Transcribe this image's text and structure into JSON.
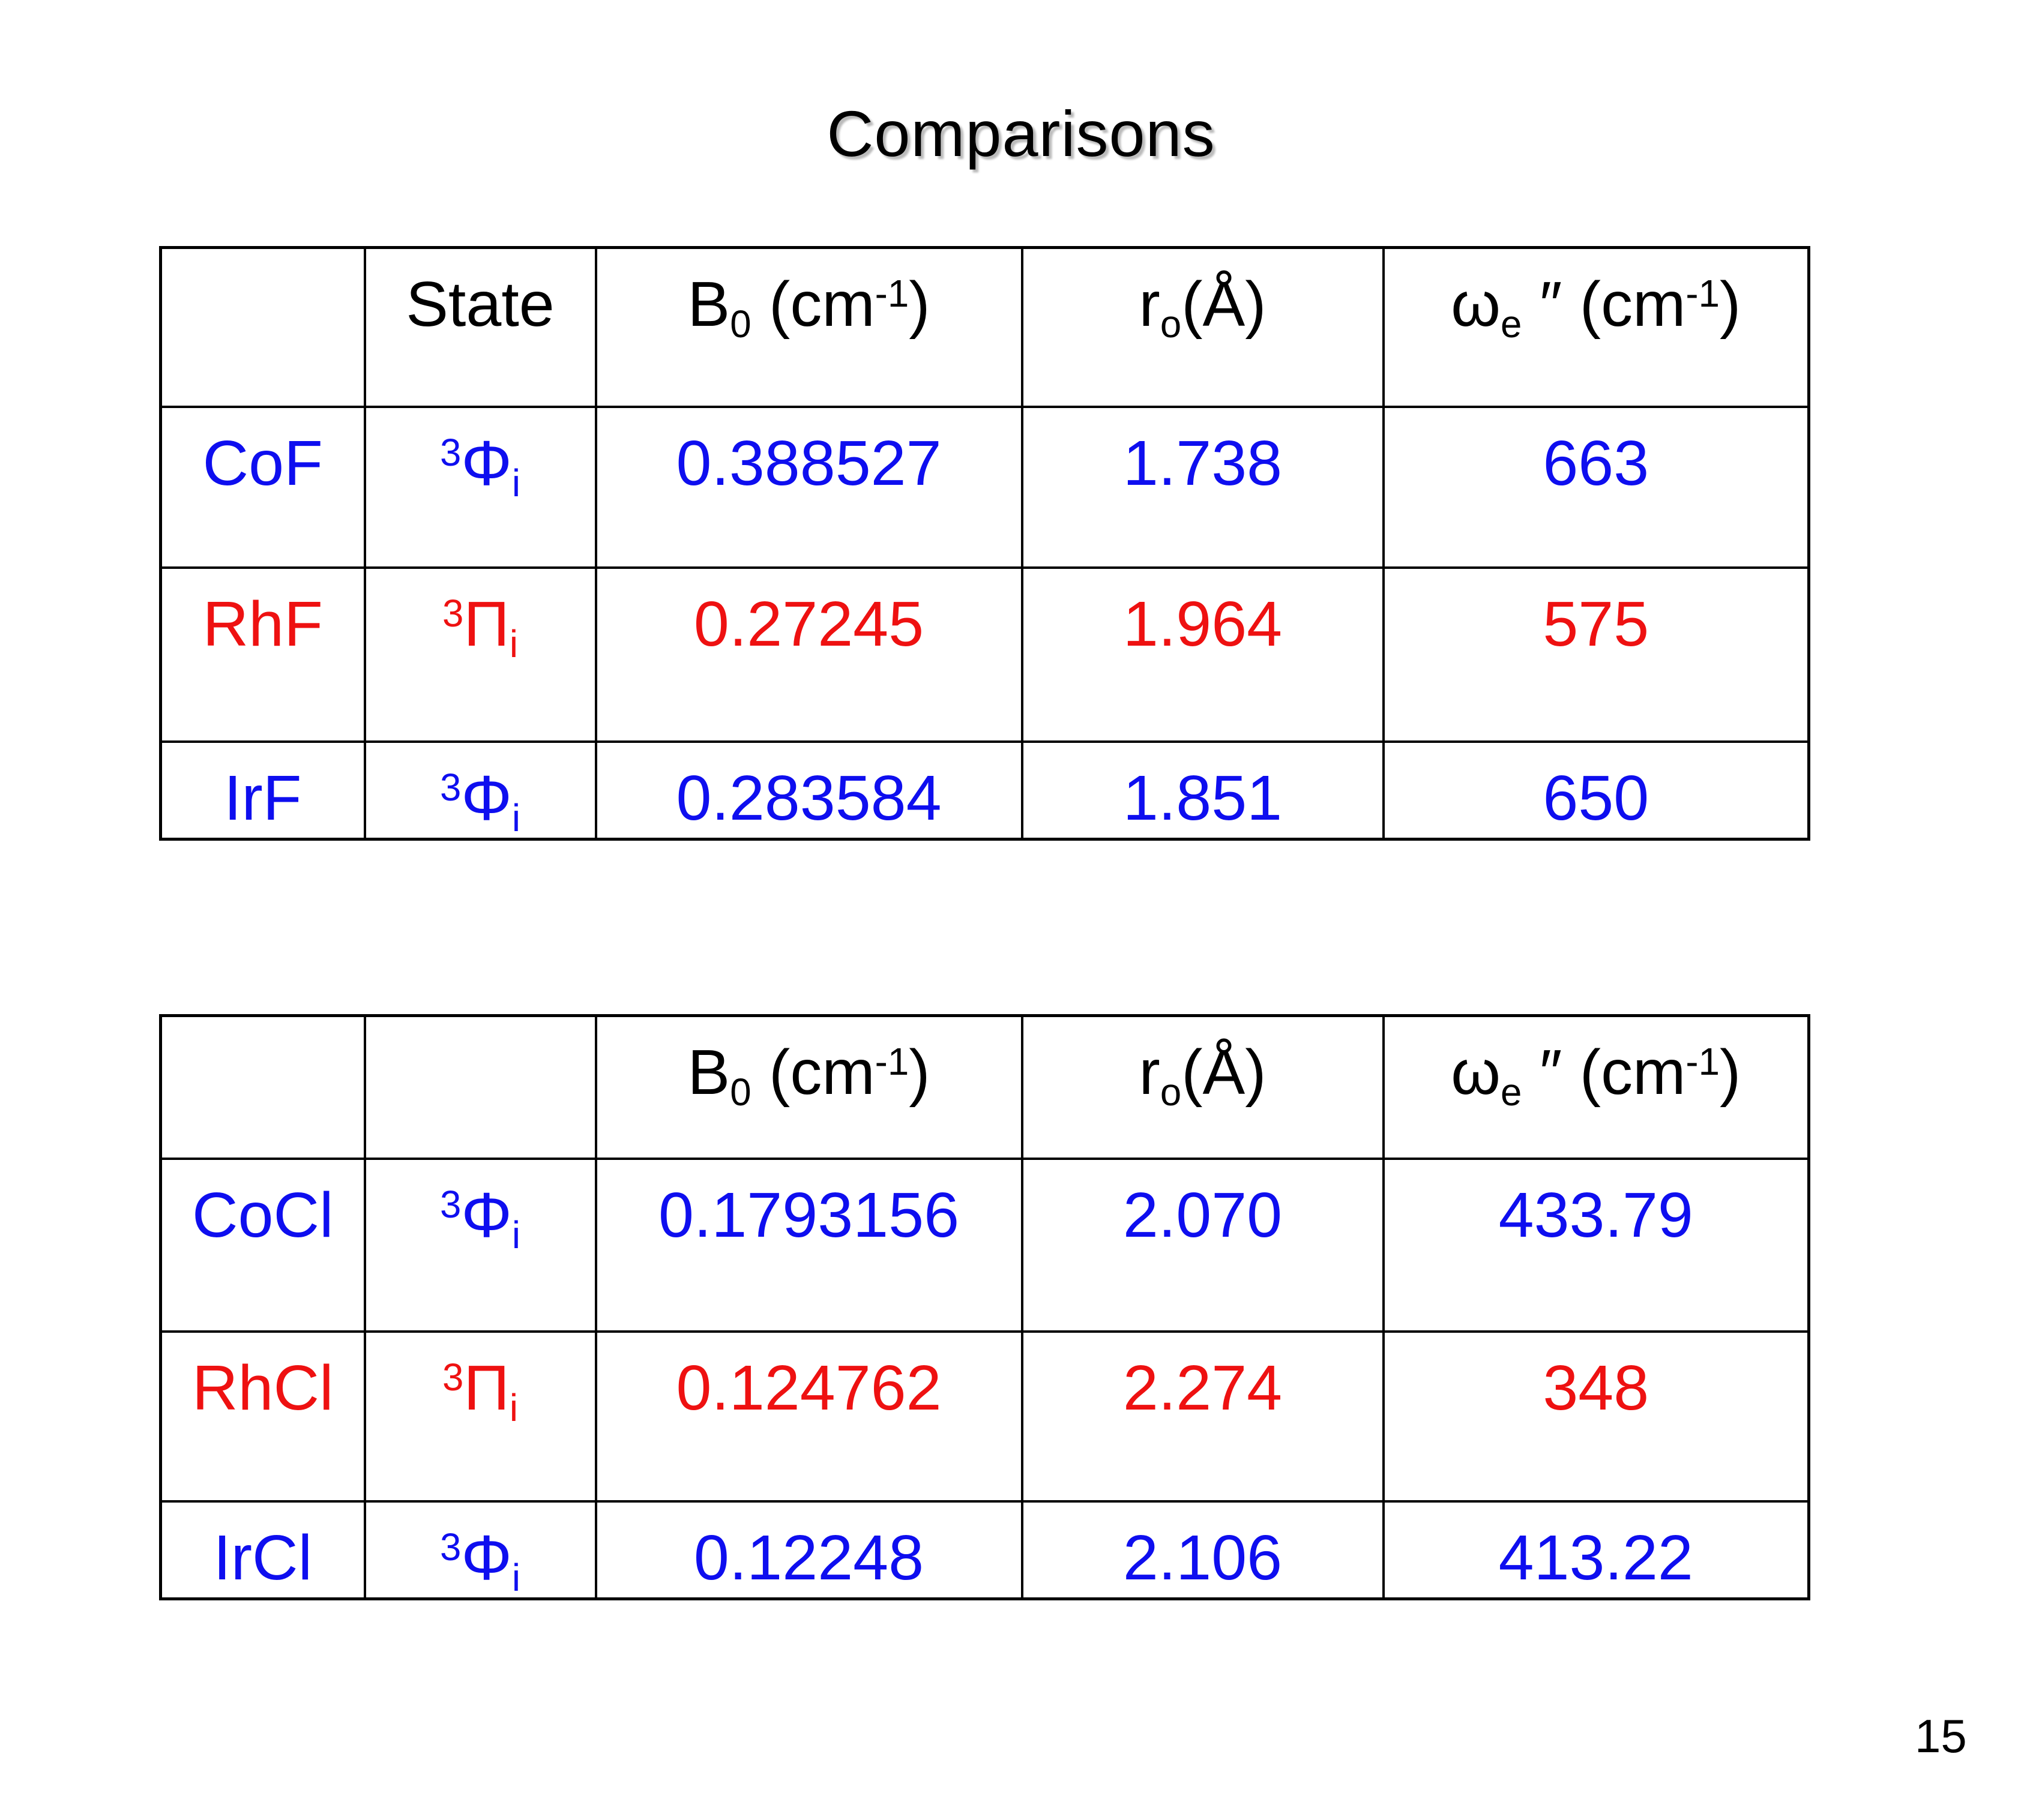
{
  "title": "Comparisons",
  "page_number": "15",
  "colors": {
    "blue": "#0e0eef",
    "red": "#ee1111",
    "black": "#000000"
  },
  "tables": [
    {
      "id": "fluorides",
      "header": [
        [],
        [
          {
            "t": "State"
          }
        ],
        [
          {
            "t": "B"
          },
          {
            "t": "0",
            "s": "sub"
          },
          {
            "t": " (cm"
          },
          {
            "t": "-1",
            "s": "sup"
          },
          {
            "t": ")"
          }
        ],
        [
          {
            "t": "r"
          },
          {
            "t": "o",
            "s": "sub"
          },
          {
            "t": "(Å)"
          }
        ],
        [
          {
            "t": "ω"
          },
          {
            "t": "e",
            "s": "sub"
          },
          {
            "t": " ″ (cm"
          },
          {
            "t": "-1",
            "s": "sup"
          },
          {
            "t": ")"
          }
        ]
      ],
      "rows": [
        {
          "color": "blue",
          "cells": [
            [
              {
                "t": "CoF"
              }
            ],
            [
              {
                "t": "3",
                "s": "sup"
              },
              {
                "t": "Φ"
              },
              {
                "t": "i",
                "s": "sub"
              }
            ],
            [
              {
                "t": "0.388527"
              }
            ],
            [
              {
                "t": "1.738"
              }
            ],
            [
              {
                "t": "663"
              }
            ]
          ]
        },
        {
          "color": "red",
          "cells": [
            [
              {
                "t": "RhF"
              }
            ],
            [
              {
                "t": "3",
                "s": "sup"
              },
              {
                "t": "Π"
              },
              {
                "t": "i",
                "s": "sub"
              }
            ],
            [
              {
                "t": "0.27245"
              }
            ],
            [
              {
                "t": "1.964"
              }
            ],
            [
              {
                "t": "575"
              }
            ]
          ]
        },
        {
          "color": "blue",
          "cells": [
            [
              {
                "t": "IrF"
              }
            ],
            [
              {
                "t": "3",
                "s": "sup"
              },
              {
                "t": "Φ"
              },
              {
                "t": "i",
                "s": "sub"
              }
            ],
            [
              {
                "t": "0.283584"
              }
            ],
            [
              {
                "t": "1.851"
              }
            ],
            [
              {
                "t": "650"
              }
            ]
          ]
        }
      ]
    },
    {
      "id": "chlorides",
      "header": [
        [],
        [],
        [
          {
            "t": "B"
          },
          {
            "t": "0",
            "s": "sub"
          },
          {
            "t": " (cm"
          },
          {
            "t": "-1",
            "s": "sup"
          },
          {
            "t": ")"
          }
        ],
        [
          {
            "t": "r"
          },
          {
            "t": "o",
            "s": "sub"
          },
          {
            "t": "(Å)"
          }
        ],
        [
          {
            "t": "ω"
          },
          {
            "t": "e",
            "s": "sub"
          },
          {
            "t": " ″ (cm"
          },
          {
            "t": "-1",
            "s": "sup"
          },
          {
            "t": ")"
          }
        ]
      ],
      "rows": [
        {
          "color": "blue",
          "cells": [
            [
              {
                "t": "CoCl"
              }
            ],
            [
              {
                "t": "3",
                "s": "sup"
              },
              {
                "t": "Φ"
              },
              {
                "t": "i",
                "s": "sub"
              }
            ],
            [
              {
                "t": "0.1793156"
              }
            ],
            [
              {
                "t": "2.070"
              }
            ],
            [
              {
                "t": "433.79"
              }
            ]
          ]
        },
        {
          "color": "red",
          "cells": [
            [
              {
                "t": "RhCl"
              }
            ],
            [
              {
                "t": "3",
                "s": "sup"
              },
              {
                "t": "Π"
              },
              {
                "t": "i",
                "s": "sub"
              }
            ],
            [
              {
                "t": "0.124762"
              }
            ],
            [
              {
                "t": "2.274"
              }
            ],
            [
              {
                "t": "348"
              }
            ]
          ]
        },
        {
          "color": "blue",
          "cells": [
            [
              {
                "t": "IrCl"
              }
            ],
            [
              {
                "t": "3",
                "s": "sup"
              },
              {
                "t": "Φ"
              },
              {
                "t": "i",
                "s": "sub"
              }
            ],
            [
              {
                "t": "0.12248"
              }
            ],
            [
              {
                "t": "2.106"
              }
            ],
            [
              {
                "t": "413.22"
              }
            ]
          ]
        }
      ]
    }
  ]
}
